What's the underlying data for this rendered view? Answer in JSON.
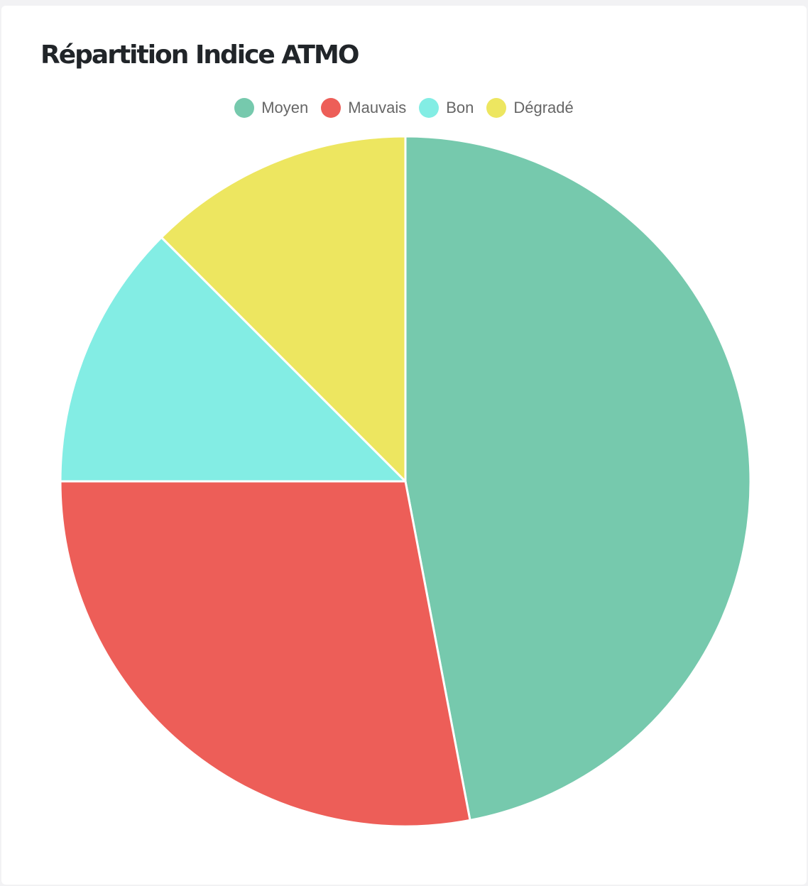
{
  "card": {
    "title": "Répartition Indice ATMO"
  },
  "chart_data": {
    "type": "pie",
    "title": "Répartition Indice ATMO",
    "legend_position": "top-center",
    "slices": [
      {
        "label": "Moyen",
        "value": 47.0,
        "color": "#76c9ad"
      },
      {
        "label": "Mauvais",
        "value": 28.0,
        "color": "#ed5e58"
      },
      {
        "label": "Bon",
        "value": 12.5,
        "color": "#83ede4"
      },
      {
        "label": "Dégradé",
        "value": 12.5,
        "color": "#ede660"
      }
    ]
  }
}
